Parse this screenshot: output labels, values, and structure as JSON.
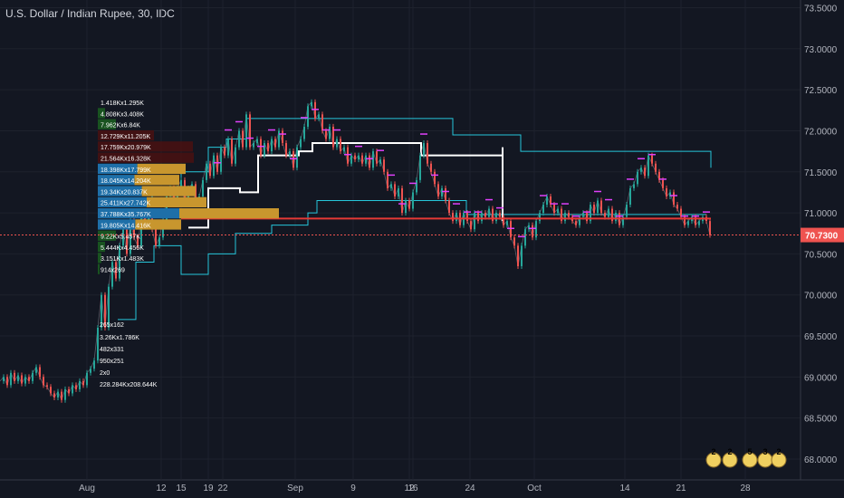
{
  "header": {
    "title": "U.S. Dollar / Indian Rupee, 30, IDC"
  },
  "colors": {
    "background": "#131722",
    "grid": "#1e222d",
    "axis_text": "#b2b5be",
    "candle_up": "#26a69a",
    "candle_down": "#ef5350",
    "poc_line": "#e53935",
    "price_label_bg": "#ef5350",
    "white_step": "#ffffff",
    "cyan_band": "#26c6da",
    "magenta_marks": "#e040fb",
    "vol_green": "#1b5e20",
    "vol_maroon": "#4a1010",
    "vol_gold": "#c8962e",
    "vol_blue": "#1e6fa8"
  },
  "chart_data": {
    "type": "line",
    "title": "U.S. Dollar / Indian Rupee, 30, IDC",
    "ylim": [
      67.9,
      73.55
    ],
    "y_ticks": [
      "73.5000",
      "73.0000",
      "72.5000",
      "72.0000",
      "71.5000",
      "71.0000",
      "70.5000",
      "70.0000",
      "69.5000",
      "69.0000",
      "68.5000",
      "68.0000"
    ],
    "x_ticks": [
      "Aug",
      "12",
      "15",
      "19",
      "22",
      "Sep",
      "9",
      "12",
      "16",
      "24",
      "Oct",
      "14",
      "21",
      "28"
    ],
    "current_price": "70.7300",
    "poc_level": 70.93,
    "series": [
      {
        "values": [
          [
            0,
            68.95
          ],
          [
            4,
            69.0
          ],
          [
            8,
            68.9
          ],
          [
            12,
            69.05
          ],
          [
            16,
            68.95
          ],
          [
            20,
            69.02
          ],
          [
            24,
            68.92
          ],
          [
            28,
            69.0
          ],
          [
            32,
            68.95
          ],
          [
            36,
            69.05
          ],
          [
            40,
            69.12
          ],
          [
            44,
            69.0
          ],
          [
            48,
            68.9
          ],
          [
            52,
            68.88
          ],
          [
            56,
            68.8
          ],
          [
            60,
            68.75
          ],
          [
            64,
            68.82
          ],
          [
            68,
            68.72
          ],
          [
            72,
            68.85
          ],
          [
            76,
            68.8
          ],
          [
            80,
            68.9
          ],
          [
            84,
            68.85
          ],
          [
            88,
            68.95
          ],
          [
            92,
            68.9
          ],
          [
            96,
            69.05
          ],
          [
            100,
            69.1
          ],
          [
            104,
            69.2
          ],
          [
            108,
            69.6
          ],
          [
            112,
            70.0
          ],
          [
            116,
            69.6
          ],
          [
            120,
            70.1
          ],
          [
            124,
            70.4
          ],
          [
            128,
            70.2
          ],
          [
            132,
            70.6
          ],
          [
            136,
            70.8
          ],
          [
            140,
            70.5
          ],
          [
            144,
            70.9
          ],
          [
            148,
            70.7
          ],
          [
            152,
            70.6
          ],
          [
            156,
            70.95
          ],
          [
            160,
            70.9
          ],
          [
            164,
            71.0
          ],
          [
            168,
            70.8
          ],
          [
            172,
            70.6
          ],
          [
            176,
            70.7
          ],
          [
            180,
            70.9
          ],
          [
            184,
            71.2
          ],
          [
            188,
            71.3
          ],
          [
            192,
            71.1
          ],
          [
            196,
            71.3
          ],
          [
            200,
            71.4
          ],
          [
            204,
            71.1
          ],
          [
            208,
            71.3
          ],
          [
            212,
            71.35
          ],
          [
            216,
            71.1
          ],
          [
            220,
            71.2
          ],
          [
            224,
            71.4
          ],
          [
            228,
            71.6
          ],
          [
            232,
            71.45
          ],
          [
            236,
            71.7
          ],
          [
            240,
            71.5
          ],
          [
            244,
            71.8
          ],
          [
            248,
            71.7
          ],
          [
            252,
            71.9
          ],
          [
            256,
            71.6
          ],
          [
            260,
            71.8
          ],
          [
            264,
            72.0
          ],
          [
            268,
            71.8
          ],
          [
            272,
            72.2
          ],
          [
            276,
            71.8
          ],
          [
            280,
            71.85
          ],
          [
            284,
            71.9
          ],
          [
            288,
            71.7
          ],
          [
            292,
            71.85
          ],
          [
            296,
            71.75
          ],
          [
            300,
            71.9
          ],
          [
            304,
            71.8
          ],
          [
            308,
            72.0
          ],
          [
            312,
            71.85
          ],
          [
            316,
            71.7
          ],
          [
            320,
            71.75
          ],
          [
            324,
            71.55
          ],
          [
            328,
            71.8
          ],
          [
            332,
            71.9
          ],
          [
            336,
            72.05
          ],
          [
            340,
            72.3
          ],
          [
            344,
            72.35
          ],
          [
            348,
            72.15
          ],
          [
            352,
            72.2
          ],
          [
            356,
            72.0
          ],
          [
            360,
            71.9
          ],
          [
            364,
            72.05
          ],
          [
            368,
            71.8
          ],
          [
            372,
            71.9
          ],
          [
            376,
            71.75
          ],
          [
            380,
            71.8
          ],
          [
            384,
            71.6
          ],
          [
            388,
            71.7
          ],
          [
            392,
            71.65
          ],
          [
            396,
            71.7
          ],
          [
            400,
            71.6
          ],
          [
            404,
            71.7
          ],
          [
            408,
            71.55
          ],
          [
            412,
            71.75
          ],
          [
            416,
            71.6
          ],
          [
            420,
            71.65
          ],
          [
            424,
            71.5
          ],
          [
            428,
            71.3
          ],
          [
            432,
            71.35
          ],
          [
            436,
            71.2
          ],
          [
            440,
            71.3
          ],
          [
            444,
            71.0
          ],
          [
            448,
            71.15
          ],
          [
            452,
            71.05
          ],
          [
            456,
            71.25
          ],
          [
            460,
            71.4
          ],
          [
            464,
            71.7
          ],
          [
            468,
            71.85
          ],
          [
            472,
            71.6
          ],
          [
            476,
            71.5
          ],
          [
            480,
            71.35
          ],
          [
            484,
            71.2
          ],
          [
            488,
            71.3
          ],
          [
            492,
            71.15
          ],
          [
            496,
            71.0
          ],
          [
            500,
            70.9
          ],
          [
            504,
            71.0
          ],
          [
            508,
            70.85
          ],
          [
            512,
            71.0
          ],
          [
            516,
            70.9
          ],
          [
            520,
            70.8
          ],
          [
            524,
            71.0
          ],
          [
            528,
            70.9
          ],
          [
            532,
            71.0
          ],
          [
            536,
            70.95
          ],
          [
            540,
            71.05
          ],
          [
            544,
            70.9
          ],
          [
            548,
            71.0
          ],
          [
            552,
            70.95
          ],
          [
            556,
            70.85
          ],
          [
            560,
            70.9
          ],
          [
            564,
            70.7
          ],
          [
            568,
            70.6
          ],
          [
            572,
            70.35
          ],
          [
            576,
            70.6
          ],
          [
            580,
            70.8
          ],
          [
            584,
            70.85
          ],
          [
            588,
            70.7
          ],
          [
            592,
            70.9
          ],
          [
            596,
            71.0
          ],
          [
            600,
            71.1
          ],
          [
            604,
            71.2
          ],
          [
            608,
            71.1
          ],
          [
            612,
            71.0
          ],
          [
            616,
            71.05
          ],
          [
            620,
            70.9
          ],
          [
            624,
            71.0
          ],
          [
            628,
            70.95
          ],
          [
            632,
            70.9
          ],
          [
            636,
            70.85
          ],
          [
            640,
            70.95
          ],
          [
            644,
            71.0
          ],
          [
            648,
            70.9
          ],
          [
            652,
            71.1
          ],
          [
            656,
            71.0
          ],
          [
            660,
            71.15
          ],
          [
            664,
            71.0
          ],
          [
            668,
            70.95
          ],
          [
            672,
            71.05
          ],
          [
            676,
            70.9
          ],
          [
            680,
            71.0
          ],
          [
            684,
            70.85
          ],
          [
            688,
            70.95
          ],
          [
            692,
            71.1
          ],
          [
            696,
            71.3
          ],
          [
            700,
            71.35
          ],
          [
            704,
            71.5
          ],
          [
            708,
            71.55
          ],
          [
            712,
            71.45
          ],
          [
            716,
            71.7
          ],
          [
            720,
            71.6
          ],
          [
            724,
            71.5
          ],
          [
            728,
            71.4
          ],
          [
            732,
            71.3
          ],
          [
            736,
            71.2
          ],
          [
            740,
            71.25
          ],
          [
            744,
            71.1
          ],
          [
            748,
            71.05
          ],
          [
            752,
            70.95
          ],
          [
            756,
            70.85
          ],
          [
            760,
            70.9
          ],
          [
            764,
            70.95
          ],
          [
            768,
            70.85
          ],
          [
            772,
            70.9
          ],
          [
            776,
            70.95
          ],
          [
            780,
            70.9
          ],
          [
            784,
            70.73
          ]
        ]
      }
    ]
  },
  "volume_profile": {
    "labels": [
      "1.418Kx1.295K",
      "4.808Kx3.408K",
      "7.962Kx6.84K",
      "12.729Kx11.205K",
      "17.759Kx20.979K",
      "21.564Kx16.328K",
      "18.398Kx17.799K",
      "18.045Kx14.204K",
      "19.34Kx20.837K",
      "25.411Kx27.742K",
      "37.788Kx35.767K",
      "19.805Kx14.416K",
      "9.22Kx5.457K",
      "5.444Kx4.456K",
      "3.151Kx1.483K",
      "914x269"
    ],
    "lower_labels": [
      "265x162",
      "3.26Kx1.786K",
      "482x331",
      "950x251",
      "2x0",
      "228.284Kx208.644K"
    ]
  },
  "badges": [
    "2",
    "2",
    "5",
    "3",
    "2"
  ]
}
